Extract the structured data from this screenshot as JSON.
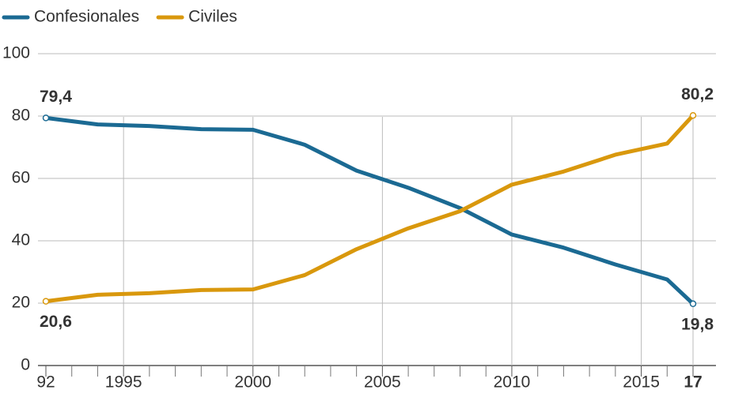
{
  "chart_data": {
    "type": "line",
    "x": [
      1992,
      1994,
      1996,
      1998,
      2000,
      2002,
      2004,
      2006,
      2008,
      2010,
      2012,
      2014,
      2016,
      2017
    ],
    "series": [
      {
        "name": "Confesionales",
        "color": "#1b6a93",
        "values": [
          79.4,
          77.3,
          76.8,
          75.8,
          75.6,
          70.8,
          62.5,
          57.0,
          50.5,
          42.0,
          37.8,
          32.4,
          27.6,
          19.8
        ],
        "value_labels": [
          "79,4",
          null,
          null,
          null,
          null,
          null,
          null,
          null,
          null,
          null,
          null,
          null,
          null,
          "19,8"
        ]
      },
      {
        "name": "Civiles",
        "color": "#d9980d",
        "values": [
          20.6,
          22.7,
          23.2,
          24.2,
          24.4,
          29.0,
          37.3,
          44.0,
          49.5,
          58.0,
          62.2,
          67.6,
          71.2,
          80.2
        ],
        "value_labels": [
          "20,6",
          null,
          null,
          null,
          null,
          null,
          null,
          null,
          null,
          null,
          null,
          null,
          null,
          "80,2"
        ]
      }
    ],
    "xlim": [
      1992,
      2017
    ],
    "xticks": [
      {
        "value": 1992,
        "label": "92"
      },
      1995,
      2000,
      2005,
      2010,
      2015,
      {
        "value": 2017,
        "label": "17"
      }
    ],
    "xminorticks": [
      1993,
      1994,
      1996,
      1997,
      1998,
      1999,
      2001,
      2002,
      2003,
      2004,
      2006,
      2007,
      2008,
      2009,
      2011,
      2012,
      2013,
      2014,
      2016
    ],
    "ylim": [
      0,
      100
    ],
    "yticks": [
      0,
      20,
      40,
      60,
      80,
      100
    ],
    "grid": true,
    "legend": "top-left"
  }
}
